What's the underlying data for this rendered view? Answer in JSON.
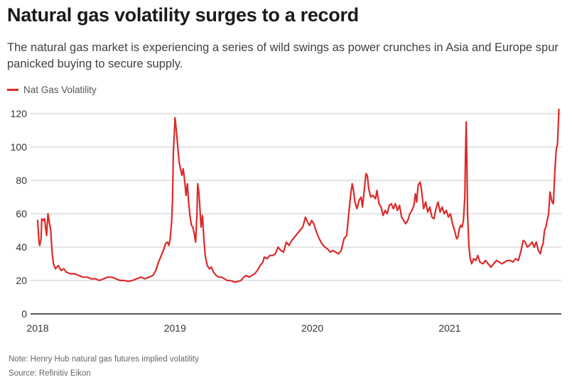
{
  "chart_data": {
    "type": "line",
    "title": "Natural gas volatility surges to a record",
    "subtitle": "The natural gas market is experiencing a series of wild swings as power crunches in Asia and Europe spur panicked buying to secure supply.",
    "xlabel": "",
    "ylabel": "",
    "ylim": [
      0,
      120
    ],
    "xlim": [
      2017.95,
      2021.8
    ],
    "grid": true,
    "legend_position": "top-left",
    "y_ticks": [
      0,
      20,
      40,
      60,
      80,
      100,
      120
    ],
    "x_ticks": [
      {
        "value": 2018,
        "label": "2018"
      },
      {
        "value": 2019,
        "label": "2019"
      },
      {
        "value": 2020,
        "label": "2020"
      },
      {
        "value": 2021,
        "label": "2021"
      }
    ],
    "series": [
      {
        "name": "Nat Gas Volatility",
        "color": "#dc2a2a",
        "points": [
          [
            2018.0,
            56
          ],
          [
            2018.01,
            43
          ],
          [
            2018.015,
            41
          ],
          [
            2018.025,
            45
          ],
          [
            2018.03,
            57
          ],
          [
            2018.04,
            56
          ],
          [
            2018.05,
            57
          ],
          [
            2018.06,
            50
          ],
          [
            2018.065,
            47
          ],
          [
            2018.075,
            60
          ],
          [
            2018.085,
            55
          ],
          [
            2018.095,
            50
          ],
          [
            2018.105,
            37
          ],
          [
            2018.115,
            30
          ],
          [
            2018.13,
            27
          ],
          [
            2018.15,
            29
          ],
          [
            2018.17,
            26
          ],
          [
            2018.19,
            27
          ],
          [
            2018.21,
            25
          ],
          [
            2018.24,
            24
          ],
          [
            2018.27,
            24
          ],
          [
            2018.3,
            23
          ],
          [
            2018.33,
            22
          ],
          [
            2018.36,
            22
          ],
          [
            2018.39,
            21
          ],
          [
            2018.42,
            21
          ],
          [
            2018.45,
            20
          ],
          [
            2018.48,
            21
          ],
          [
            2018.51,
            22
          ],
          [
            2018.54,
            22
          ],
          [
            2018.57,
            21
          ],
          [
            2018.6,
            20
          ],
          [
            2018.63,
            20
          ],
          [
            2018.66,
            19.5
          ],
          [
            2018.69,
            20
          ],
          [
            2018.72,
            21
          ],
          [
            2018.75,
            22
          ],
          [
            2018.78,
            21
          ],
          [
            2018.81,
            22
          ],
          [
            2018.84,
            23
          ],
          [
            2018.86,
            26
          ],
          [
            2018.88,
            31
          ],
          [
            2018.9,
            35
          ],
          [
            2018.92,
            39
          ],
          [
            2018.93,
            42
          ],
          [
            2018.945,
            43
          ],
          [
            2018.955,
            41
          ],
          [
            2018.965,
            45
          ],
          [
            2018.975,
            55
          ],
          [
            2018.982,
            68
          ],
          [
            2018.988,
            97
          ],
          [
            2018.995,
            108
          ],
          [
            2019.0,
            117.5
          ],
          [
            2019.01,
            110
          ],
          [
            2019.02,
            100
          ],
          [
            2019.03,
            91
          ],
          [
            2019.04,
            87
          ],
          [
            2019.05,
            83
          ],
          [
            2019.06,
            87
          ],
          [
            2019.07,
            80
          ],
          [
            2019.08,
            71
          ],
          [
            2019.09,
            78
          ],
          [
            2019.1,
            66
          ],
          [
            2019.11,
            58
          ],
          [
            2019.12,
            53
          ],
          [
            2019.13,
            52
          ],
          [
            2019.14,
            48
          ],
          [
            2019.15,
            43
          ],
          [
            2019.16,
            60
          ],
          [
            2019.165,
            78
          ],
          [
            2019.175,
            72
          ],
          [
            2019.185,
            58
          ],
          [
            2019.19,
            52
          ],
          [
            2019.2,
            59
          ],
          [
            2019.21,
            45
          ],
          [
            2019.22,
            35
          ],
          [
            2019.235,
            29
          ],
          [
            2019.25,
            27
          ],
          [
            2019.265,
            28
          ],
          [
            2019.28,
            25
          ],
          [
            2019.3,
            23
          ],
          [
            2019.32,
            22
          ],
          [
            2019.34,
            22
          ],
          [
            2019.36,
            21
          ],
          [
            2019.38,
            20
          ],
          [
            2019.4,
            20
          ],
          [
            2019.42,
            19.5
          ],
          [
            2019.44,
            19
          ],
          [
            2019.46,
            19.5
          ],
          [
            2019.48,
            20
          ],
          [
            2019.5,
            22
          ],
          [
            2019.52,
            23
          ],
          [
            2019.54,
            22
          ],
          [
            2019.56,
            23
          ],
          [
            2019.58,
            24
          ],
          [
            2019.6,
            26
          ],
          [
            2019.62,
            29
          ],
          [
            2019.64,
            31
          ],
          [
            2019.65,
            34
          ],
          [
            2019.67,
            33
          ],
          [
            2019.69,
            35
          ],
          [
            2019.71,
            35
          ],
          [
            2019.73,
            36
          ],
          [
            2019.75,
            40
          ],
          [
            2019.77,
            38
          ],
          [
            2019.79,
            37
          ],
          [
            2019.81,
            43
          ],
          [
            2019.83,
            41
          ],
          [
            2019.85,
            44
          ],
          [
            2019.87,
            46
          ],
          [
            2019.89,
            48
          ],
          [
            2019.91,
            50
          ],
          [
            2019.93,
            52
          ],
          [
            2019.95,
            58
          ],
          [
            2019.965,
            55
          ],
          [
            2019.98,
            53
          ],
          [
            2019.995,
            56
          ],
          [
            2020.01,
            54
          ],
          [
            2020.03,
            49
          ],
          [
            2020.05,
            45
          ],
          [
            2020.07,
            42
          ],
          [
            2020.09,
            40
          ],
          [
            2020.11,
            39
          ],
          [
            2020.13,
            37
          ],
          [
            2020.15,
            38
          ],
          [
            2020.17,
            37
          ],
          [
            2020.19,
            36
          ],
          [
            2020.21,
            38
          ],
          [
            2020.23,
            45
          ],
          [
            2020.25,
            47
          ],
          [
            2020.265,
            60
          ],
          [
            2020.28,
            72
          ],
          [
            2020.29,
            78
          ],
          [
            2020.3,
            74
          ],
          [
            2020.31,
            67
          ],
          [
            2020.325,
            63
          ],
          [
            2020.34,
            68
          ],
          [
            2020.355,
            70
          ],
          [
            2020.365,
            64
          ],
          [
            2020.38,
            76
          ],
          [
            2020.39,
            84
          ],
          [
            2020.4,
            83
          ],
          [
            2020.41,
            75
          ],
          [
            2020.425,
            70
          ],
          [
            2020.44,
            71
          ],
          [
            2020.46,
            69
          ],
          [
            2020.47,
            74
          ],
          [
            2020.485,
            66
          ],
          [
            2020.5,
            64
          ],
          [
            2020.515,
            59
          ],
          [
            2020.53,
            62
          ],
          [
            2020.545,
            60
          ],
          [
            2020.56,
            65
          ],
          [
            2020.575,
            66
          ],
          [
            2020.59,
            63
          ],
          [
            2020.605,
            66
          ],
          [
            2020.62,
            62
          ],
          [
            2020.635,
            65
          ],
          [
            2020.65,
            58
          ],
          [
            2020.665,
            56
          ],
          [
            2020.68,
            54
          ],
          [
            2020.695,
            56
          ],
          [
            2020.71,
            60
          ],
          [
            2020.725,
            62
          ],
          [
            2020.74,
            65
          ],
          [
            2020.75,
            72
          ],
          [
            2020.76,
            67
          ],
          [
            2020.77,
            77
          ],
          [
            2020.785,
            79
          ],
          [
            2020.795,
            74
          ],
          [
            2020.81,
            63
          ],
          [
            2020.825,
            67
          ],
          [
            2020.84,
            61
          ],
          [
            2020.855,
            64
          ],
          [
            2020.87,
            58
          ],
          [
            2020.885,
            57
          ],
          [
            2020.9,
            63
          ],
          [
            2020.915,
            67
          ],
          [
            2020.93,
            61
          ],
          [
            2020.945,
            64
          ],
          [
            2020.96,
            60
          ],
          [
            2020.975,
            62
          ],
          [
            2020.99,
            58
          ],
          [
            2021.005,
            60
          ],
          [
            2021.02,
            54
          ],
          [
            2021.035,
            50
          ],
          [
            2021.05,
            45
          ],
          [
            2021.06,
            46
          ],
          [
            2021.07,
            51
          ],
          [
            2021.08,
            53
          ],
          [
            2021.09,
            52
          ],
          [
            2021.1,
            56
          ],
          [
            2021.11,
            70
          ],
          [
            2021.115,
            95
          ],
          [
            2021.12,
            115
          ],
          [
            2021.125,
            90
          ],
          [
            2021.13,
            60
          ],
          [
            2021.14,
            40
          ],
          [
            2021.15,
            33
          ],
          [
            2021.16,
            30
          ],
          [
            2021.175,
            33
          ],
          [
            2021.19,
            32
          ],
          [
            2021.205,
            35
          ],
          [
            2021.22,
            31
          ],
          [
            2021.24,
            30
          ],
          [
            2021.26,
            32
          ],
          [
            2021.28,
            30
          ],
          [
            2021.3,
            28
          ],
          [
            2021.32,
            30
          ],
          [
            2021.34,
            32
          ],
          [
            2021.36,
            31
          ],
          [
            2021.38,
            30
          ],
          [
            2021.4,
            31
          ],
          [
            2021.42,
            32
          ],
          [
            2021.44,
            32
          ],
          [
            2021.46,
            31
          ],
          [
            2021.48,
            33
          ],
          [
            2021.5,
            32
          ],
          [
            2021.52,
            38
          ],
          [
            2021.535,
            44
          ],
          [
            2021.55,
            43
          ],
          [
            2021.565,
            40
          ],
          [
            2021.58,
            41
          ],
          [
            2021.6,
            43
          ],
          [
            2021.615,
            40
          ],
          [
            2021.63,
            43
          ],
          [
            2021.645,
            38
          ],
          [
            2021.66,
            36
          ],
          [
            2021.67,
            40
          ],
          [
            2021.68,
            42
          ],
          [
            2021.69,
            50
          ],
          [
            2021.7,
            52
          ],
          [
            2021.71,
            56
          ],
          [
            2021.72,
            60
          ],
          [
            2021.73,
            73
          ],
          [
            2021.745,
            67
          ],
          [
            2021.755,
            66
          ],
          [
            2021.765,
            85
          ],
          [
            2021.775,
            98
          ],
          [
            2021.785,
            102
          ],
          [
            2021.795,
            122.5
          ]
        ]
      }
    ]
  },
  "legend": {
    "label": "Nat Gas Volatility",
    "color": "#dc2a2a"
  },
  "footer": {
    "note": "Note: Henry Hub natural gas futures implied volatility",
    "source": "Source: Refinitiv Eikon"
  }
}
